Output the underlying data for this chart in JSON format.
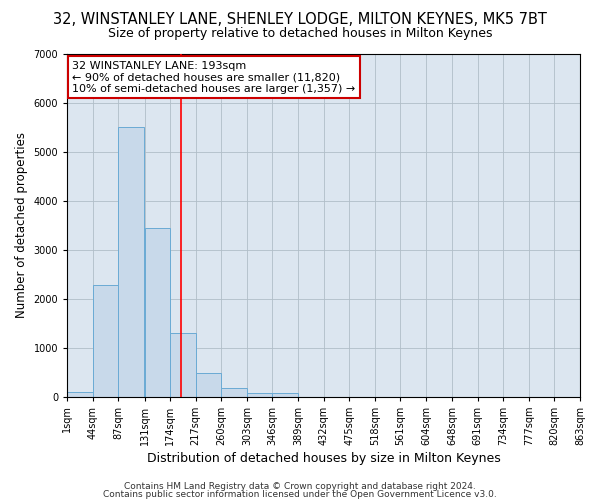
{
  "title1": "32, WINSTANLEY LANE, SHENLEY LODGE, MILTON KEYNES, MK5 7BT",
  "title2": "Size of property relative to detached houses in Milton Keynes",
  "xlabel": "Distribution of detached houses by size in Milton Keynes",
  "ylabel": "Number of detached properties",
  "bin_width": 43,
  "bin_starts": [
    1,
    44,
    87,
    131,
    174,
    217,
    260,
    303,
    346,
    389,
    432,
    475,
    518,
    561,
    604,
    648,
    691,
    734,
    777,
    820
  ],
  "bar_heights": [
    100,
    2280,
    5500,
    3450,
    1300,
    475,
    175,
    75,
    75,
    0,
    0,
    0,
    0,
    0,
    0,
    0,
    0,
    0,
    0,
    0
  ],
  "bar_color": "#c8d9ea",
  "bar_edge_color": "#6aaad4",
  "grid_color": "#b0bec8",
  "plot_bg_color": "#dce6f0",
  "fig_bg_color": "#ffffff",
  "red_line_x": 193,
  "annotation_text": "32 WINSTANLEY LANE: 193sqm\n← 90% of detached houses are smaller (11,820)\n10% of semi-detached houses are larger (1,357) →",
  "annotation_box_facecolor": "#ffffff",
  "annotation_border_color": "#cc0000",
  "ylim": [
    0,
    7000
  ],
  "yticks": [
    0,
    1000,
    2000,
    3000,
    4000,
    5000,
    6000,
    7000
  ],
  "xtick_labels": [
    "1sqm",
    "44sqm",
    "87sqm",
    "131sqm",
    "174sqm",
    "217sqm",
    "260sqm",
    "303sqm",
    "346sqm",
    "389sqm",
    "432sqm",
    "475sqm",
    "518sqm",
    "561sqm",
    "604sqm",
    "648sqm",
    "691sqm",
    "734sqm",
    "777sqm",
    "820sqm",
    "863sqm"
  ],
  "footer1": "Contains HM Land Registry data © Crown copyright and database right 2024.",
  "footer2": "Contains public sector information licensed under the Open Government Licence v3.0.",
  "title1_fontsize": 10.5,
  "title2_fontsize": 9,
  "xlabel_fontsize": 9,
  "ylabel_fontsize": 8.5,
  "tick_fontsize": 7,
  "annotation_fontsize": 8,
  "footer_fontsize": 6.5
}
